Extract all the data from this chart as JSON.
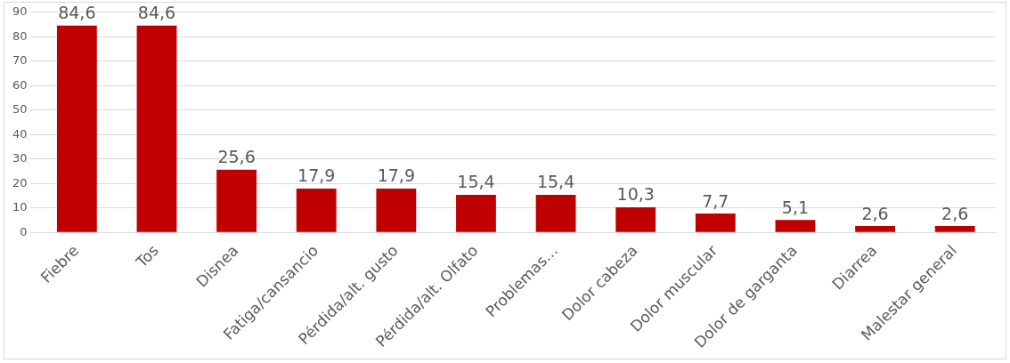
{
  "chart_data": {
    "type": "bar",
    "categories": [
      "Fiebre",
      "Tos",
      "Disnea",
      "Fatiga/cansancio",
      "Pérdida/alt. gusto",
      "Pérdida/alt. Olfato",
      "Problemas…",
      "Dolor cabeza",
      "Dolor muscular",
      "Dolor de garganta",
      "Diarrea",
      "Malestar general"
    ],
    "values": [
      84.6,
      84.6,
      25.6,
      17.9,
      17.9,
      15.4,
      15.4,
      10.3,
      7.7,
      5.1,
      2.6,
      2.6
    ],
    "value_labels": [
      "84,6",
      "84,6",
      "25,6",
      "17,9",
      "17,9",
      "15,4",
      "15,4",
      "10,3",
      "7,7",
      "5,1",
      "2,6",
      "2,6"
    ],
    "color": "#c00000",
    "ylim": [
      0,
      90
    ],
    "yticks": [
      0,
      10,
      20,
      30,
      40,
      50,
      60,
      70,
      80,
      90
    ],
    "grid": "y",
    "legend": false
  }
}
